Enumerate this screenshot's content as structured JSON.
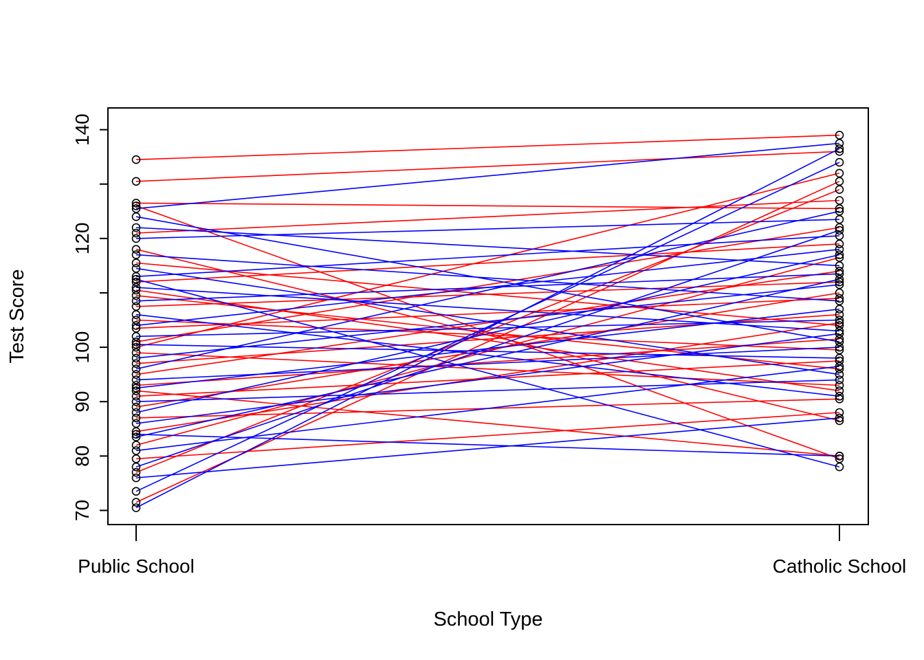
{
  "chart_data": {
    "type": "line",
    "title": "",
    "xlabel": "School Type",
    "ylabel": "Test Score",
    "categories": [
      "Public School",
      "Catholic School"
    ],
    "ylim": [
      67.4,
      144.0
    ],
    "yticks_labeled": [
      70,
      80,
      90,
      100,
      120,
      140
    ],
    "yticks_unlabeled": [
      110,
      130
    ],
    "grid": false,
    "legend": "none",
    "marker": "open-circle",
    "colors": {
      "series_a": "#FF0000",
      "series_b": "#0000FF",
      "marker": "#000000"
    },
    "series": [
      {
        "color": "red",
        "values": [
          134.5,
          139.0
        ]
      },
      {
        "color": "red",
        "values": [
          130.5,
          136.0
        ]
      },
      {
        "color": "red",
        "values": [
          126.5,
          125.5
        ]
      },
      {
        "color": "red",
        "values": [
          126.0,
          79.5
        ]
      },
      {
        "color": "red",
        "values": [
          121.0,
          127.0
        ]
      },
      {
        "color": "red",
        "values": [
          118.0,
          86.5
        ]
      },
      {
        "color": "red",
        "values": [
          115.5,
          104.0
        ]
      },
      {
        "color": "red",
        "values": [
          112.0,
          119.0
        ]
      },
      {
        "color": "red",
        "values": [
          109.5,
          96.0
        ]
      },
      {
        "color": "red",
        "values": [
          107.5,
          112.0
        ]
      },
      {
        "color": "red",
        "values": [
          105.0,
          99.5
        ]
      },
      {
        "color": "red",
        "values": [
          103.5,
          109.0
        ]
      },
      {
        "color": "red",
        "values": [
          101.0,
          122.0
        ]
      },
      {
        "color": "red",
        "values": [
          99.0,
          93.0
        ]
      },
      {
        "color": "red",
        "values": [
          97.0,
          106.0
        ]
      },
      {
        "color": "red",
        "values": [
          95.0,
          114.0
        ]
      },
      {
        "color": "red",
        "values": [
          93.0,
          101.5
        ]
      },
      {
        "color": "red",
        "values": [
          91.0,
          97.5
        ]
      },
      {
        "color": "red",
        "values": [
          89.0,
          110.0
        ]
      },
      {
        "color": "red",
        "values": [
          87.0,
          90.5
        ]
      },
      {
        "color": "red",
        "values": [
          84.5,
          104.5
        ]
      },
      {
        "color": "red",
        "values": [
          82.0,
          116.5
        ]
      },
      {
        "color": "red",
        "values": [
          79.5,
          88.0
        ]
      },
      {
        "color": "red",
        "values": [
          77.0,
          129.0
        ]
      },
      {
        "color": "red",
        "values": [
          71.5,
          130.5
        ]
      },
      {
        "color": "red",
        "values": [
          110.5,
          92.0
        ]
      },
      {
        "color": "red",
        "values": [
          100.0,
          132.0
        ]
      },
      {
        "color": "red",
        "values": [
          92.0,
          80.0
        ]
      },
      {
        "color": "blue",
        "values": [
          125.5,
          137.5
        ]
      },
      {
        "color": "blue",
        "values": [
          124.0,
          101.0
        ]
      },
      {
        "color": "blue",
        "values": [
          122.0,
          115.0
        ]
      },
      {
        "color": "blue",
        "values": [
          120.0,
          123.5
        ]
      },
      {
        "color": "blue",
        "values": [
          117.0,
          108.5
        ]
      },
      {
        "color": "blue",
        "values": [
          114.5,
          95.0
        ]
      },
      {
        "color": "blue",
        "values": [
          113.0,
          120.5
        ]
      },
      {
        "color": "blue",
        "values": [
          111.0,
          103.0
        ]
      },
      {
        "color": "blue",
        "values": [
          108.5,
          113.5
        ]
      },
      {
        "color": "blue",
        "values": [
          106.0,
          91.0
        ]
      },
      {
        "color": "blue",
        "values": [
          104.0,
          118.0
        ]
      },
      {
        "color": "blue",
        "values": [
          102.0,
          105.0
        ]
      },
      {
        "color": "blue",
        "values": [
          100.5,
          98.0
        ]
      },
      {
        "color": "blue",
        "values": [
          98.0,
          111.5
        ]
      },
      {
        "color": "blue",
        "values": [
          96.0,
          125.0
        ]
      },
      {
        "color": "blue",
        "values": [
          94.0,
          100.0
        ]
      },
      {
        "color": "blue",
        "values": [
          92.5,
          107.0
        ]
      },
      {
        "color": "blue",
        "values": [
          90.0,
          94.0
        ]
      },
      {
        "color": "blue",
        "values": [
          88.0,
          117.0
        ]
      },
      {
        "color": "blue",
        "values": [
          86.0,
          102.5
        ]
      },
      {
        "color": "blue",
        "values": [
          83.5,
          112.5
        ]
      },
      {
        "color": "blue",
        "values": [
          81.0,
          96.5
        ]
      },
      {
        "color": "blue",
        "values": [
          78.0,
          121.5
        ]
      },
      {
        "color": "blue",
        "values": [
          76.0,
          87.0
        ]
      },
      {
        "color": "blue",
        "values": [
          73.5,
          134.0
        ]
      },
      {
        "color": "blue",
        "values": [
          70.5,
          136.5
        ]
      },
      {
        "color": "blue",
        "values": [
          112.5,
          78.0
        ]
      },
      {
        "color": "blue",
        "values": [
          84.0,
          80.0
        ]
      }
    ]
  }
}
